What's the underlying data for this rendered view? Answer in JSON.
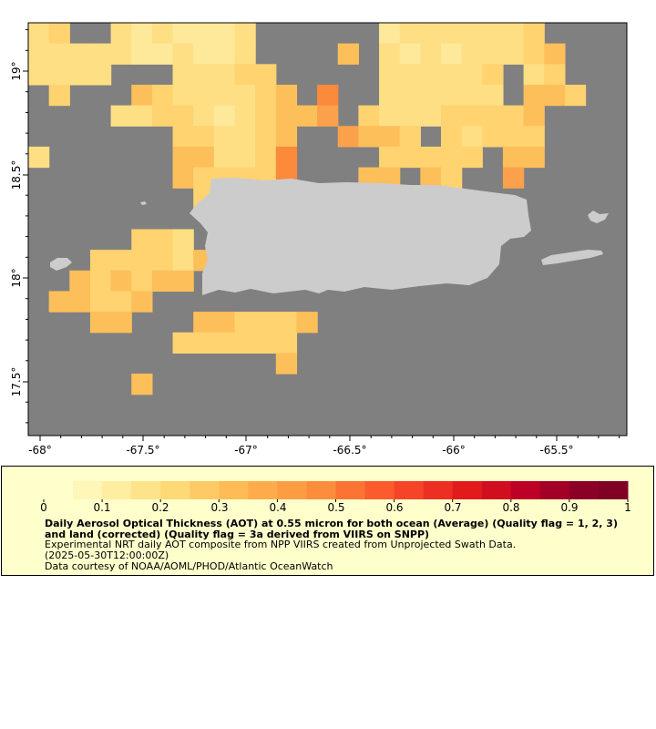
{
  "map": {
    "lon_ticks": [
      "-68°",
      "-67.5°",
      "-67°",
      "-66.5°",
      "-66°",
      "-65.5°"
    ],
    "lat_ticks": [
      "19°",
      "18.5°",
      "18°",
      "17.5°"
    ],
    "colors": {
      "ocean": "#808080",
      "land": "#cccccc"
    }
  },
  "legend": {
    "ticks": [
      "0",
      "0.1",
      "0.2",
      "0.3",
      "0.4",
      "0.5",
      "0.6",
      "0.7",
      "0.8",
      "0.9",
      "1"
    ],
    "colors": [
      "#ffffcc",
      "#fff6b8",
      "#ffeda0",
      "#fee38b",
      "#fed976",
      "#feca66",
      "#febb56",
      "#feac4b",
      "#fd9d43",
      "#fd8d3c",
      "#fc7434",
      "#fc5b2e",
      "#f64428",
      "#ec2f22",
      "#e31a1c",
      "#d10d20",
      "#bd0026",
      "#a20026",
      "#8a0026",
      "#800026"
    ],
    "title": "Daily Aerosol Optical Thickness (AOT) at 0.55 micron for both ocean (Average) (Quality flag = 1, 2, 3) and land (corrected) (Quality flag = 3a derived from VIIRS on SNPP)",
    "description": "Experimental NRT daily AOT composite from NPP VIIRS created from Unprojected Swath Data.",
    "timestamp": "(2025-05-30T12:00:00Z)",
    "credit": "Data courtesy of NOAA/AOML/PHOD/Atlantic OceanWatch"
  }
}
